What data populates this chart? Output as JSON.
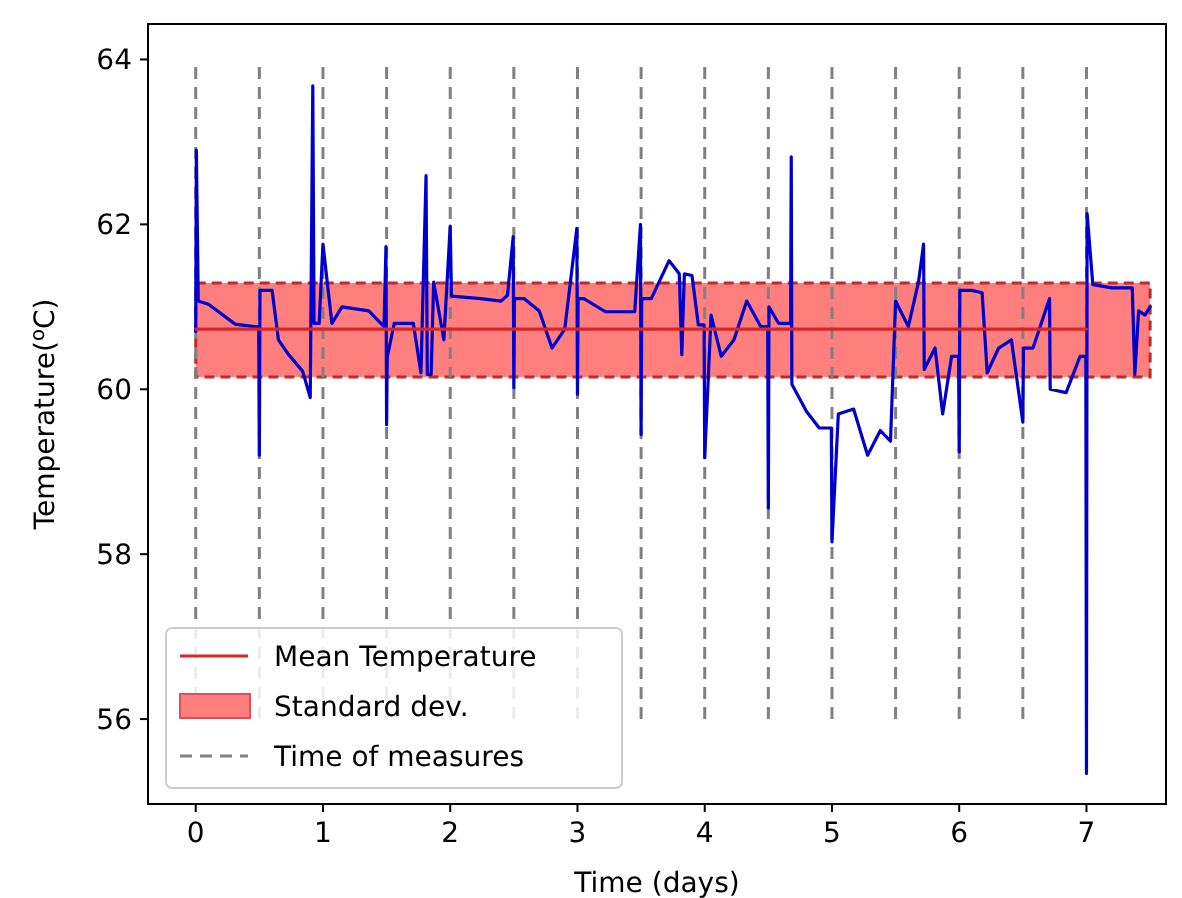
{
  "chart_data": {
    "type": "line",
    "xlabel": "Time (days)",
    "ylabel": "Temperature($^{o}$C)",
    "xlim": [
      -0.375,
      7.625
    ],
    "ylim": [
      54.97,
      64.43
    ],
    "xticks": [
      0,
      1,
      2,
      3,
      4,
      5,
      6,
      7
    ],
    "yticks": [
      56,
      58,
      60,
      62,
      64
    ],
    "grid": false,
    "legend": "bottom left",
    "series": [
      {
        "color": "#0000cd",
        "x": [
          0,
          0.005,
          0.02,
          0.1,
          0.31,
          0.46,
          0.495,
          0.5,
          0.505,
          0.6,
          0.65,
          0.73,
          0.84,
          0.9,
          0.92,
          0.93,
          0.97,
          1.0,
          1.07,
          1.15,
          1.36,
          1.48,
          1.495,
          1.5,
          1.505,
          1.56,
          1.64,
          1.71,
          1.77,
          1.81,
          1.82,
          1.85,
          1.87,
          1.95,
          2.0,
          2.01,
          2.24,
          2.4,
          2.45,
          2.495,
          2.5,
          2.505,
          2.58,
          2.7,
          2.8,
          2.9,
          2.995,
          3.0,
          3.005,
          3.05,
          3.22,
          3.45,
          3.495,
          3.5,
          3.505,
          3.58,
          3.72,
          3.8,
          3.82,
          3.84,
          3.9,
          3.95,
          3.995,
          4.0,
          4.05,
          4.13,
          4.23,
          4.33,
          4.44,
          4.495,
          4.5,
          4.505,
          4.58,
          4.675,
          4.68,
          4.685,
          4.8,
          4.9,
          4.995,
          5.0,
          5.05,
          5.17,
          5.28,
          5.38,
          5.46,
          5.5,
          5.6,
          5.68,
          5.72,
          5.725,
          5.81,
          5.87,
          5.94,
          5.995,
          6.0,
          6.005,
          6.1,
          6.18,
          6.22,
          6.31,
          6.41,
          6.5,
          6.505,
          6.58,
          6.71,
          6.715,
          6.84,
          6.95,
          6.995,
          7.0,
          7.005,
          7.05,
          7.2,
          7.36,
          7.38,
          7.41,
          7.46,
          7.5
        ],
        "values": [
          60.7,
          62.9,
          61.07,
          61.03,
          60.79,
          60.76,
          60.76,
          59.2,
          61.2,
          61.2,
          60.6,
          60.42,
          60.22,
          59.9,
          63.68,
          60.8,
          60.8,
          61.76,
          60.8,
          61.0,
          60.95,
          60.76,
          61.73,
          59.57,
          60.39,
          60.8,
          60.8,
          60.8,
          60.2,
          62.59,
          60.18,
          60.18,
          61.3,
          60.6,
          61.98,
          61.13,
          61.1,
          61.07,
          61.14,
          61.85,
          60.02,
          61.1,
          61.1,
          60.95,
          60.5,
          60.73,
          61.95,
          59.94,
          61.1,
          61.1,
          60.94,
          60.94,
          62.0,
          59.45,
          61.1,
          61.1,
          61.56,
          61.4,
          60.42,
          61.4,
          61.38,
          60.78,
          60.78,
          59.17,
          60.9,
          60.4,
          60.6,
          61.07,
          60.76,
          60.76,
          58.56,
          61.0,
          60.8,
          60.8,
          62.82,
          60.06,
          59.73,
          59.53,
          59.53,
          58.15,
          59.7,
          59.76,
          59.2,
          59.5,
          59.37,
          61.07,
          60.76,
          61.3,
          61.76,
          60.24,
          60.5,
          59.7,
          60.4,
          60.4,
          59.24,
          61.2,
          61.2,
          61.17,
          60.2,
          60.5,
          60.6,
          59.6,
          60.5,
          60.5,
          61.1,
          60.0,
          59.96,
          60.4,
          60.4,
          55.34,
          62.13,
          61.27,
          61.23,
          61.23,
          60.18,
          60.95,
          60.9,
          61.0
        ]
      },
      {
        "name": "Mean Temperature",
        "color": "#d62728",
        "x": [
          0,
          7
        ],
        "values": [
          60.73,
          60.73
        ]
      }
    ],
    "bands": [
      {
        "axis": "y",
        "from": 60.15,
        "to": 61.29,
        "label": "Standard dev.",
        "color": "#ff7f7f"
      }
    ],
    "ref_lines": [
      {
        "axis": "x",
        "value": 0,
        "label": "Time of measures",
        "color": "#808080",
        "line_style": "dashed"
      },
      {
        "axis": "x",
        "value": 0.5,
        "color": "#808080",
        "line_style": "dashed"
      },
      {
        "axis": "x",
        "value": 1,
        "color": "#808080",
        "line_style": "dashed"
      },
      {
        "axis": "x",
        "value": 1.5,
        "color": "#808080",
        "line_style": "dashed"
      },
      {
        "axis": "x",
        "value": 2,
        "color": "#808080",
        "line_style": "dashed"
      },
      {
        "axis": "x",
        "value": 2.5,
        "color": "#808080",
        "line_style": "dashed"
      },
      {
        "axis": "x",
        "value": 3,
        "color": "#808080",
        "line_style": "dashed"
      },
      {
        "axis": "x",
        "value": 3.5,
        "color": "#808080",
        "line_style": "dashed"
      },
      {
        "axis": "x",
        "value": 4,
        "color": "#808080",
        "line_style": "dashed"
      },
      {
        "axis": "x",
        "value": 4.5,
        "color": "#808080",
        "line_style": "dashed"
      },
      {
        "axis": "x",
        "value": 5,
        "color": "#808080",
        "line_style": "dashed"
      },
      {
        "axis": "x",
        "value": 5.5,
        "color": "#808080",
        "line_style": "dashed"
      },
      {
        "axis": "x",
        "value": 6,
        "color": "#808080",
        "line_style": "dashed"
      },
      {
        "axis": "x",
        "value": 6.5,
        "color": "#808080",
        "line_style": "dashed"
      },
      {
        "axis": "x",
        "value": 7,
        "color": "#808080",
        "line_style": "dashed"
      }
    ]
  }
}
